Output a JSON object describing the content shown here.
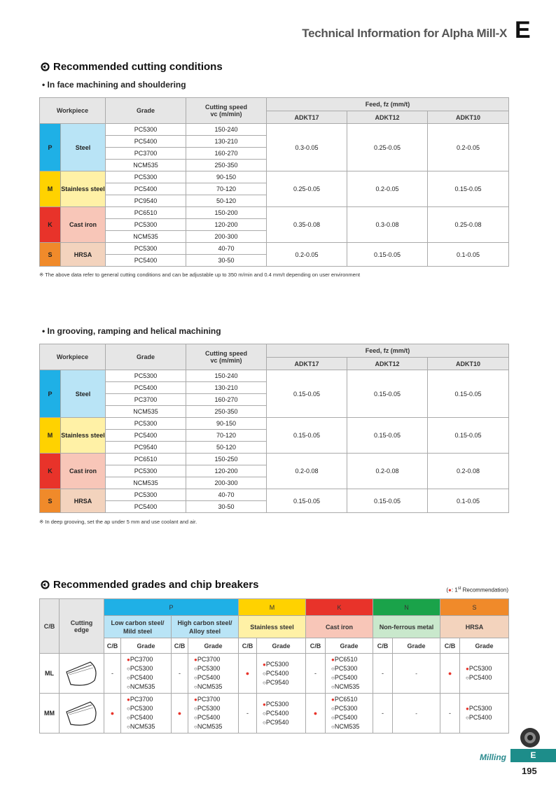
{
  "header": {
    "title": "Technical Information for Alpha Mill-X",
    "letter": "E"
  },
  "section1": {
    "title": "Recommended cutting conditions"
  },
  "table1": {
    "subtitle": "• In face machining and shouldering",
    "headers": {
      "workpiece": "Workpiece",
      "grade": "Grade",
      "speed": [
        "Cutting speed",
        "vc (m/min)"
      ],
      "feed": "Feed, fz (mm/t)",
      "tools": [
        "ADKT17",
        "ADKT12",
        "ADKT10"
      ]
    },
    "groups": [
      {
        "code": "P",
        "material": "Steel",
        "color": "#1fb0e6",
        "light": "#b9e4f6",
        "rows": [
          [
            "PC5300",
            "150-240"
          ],
          [
            "PC5400",
            "130-210"
          ],
          [
            "PC3700",
            "160-270"
          ],
          [
            "NCM535",
            "250-350"
          ]
        ],
        "feeds": [
          "0.3-0.05",
          "0.25-0.05",
          "0.2-0.05"
        ]
      },
      {
        "code": "M",
        "material": "Stainless steel",
        "color": "#ffd200",
        "light": "#fff1a6",
        "rows": [
          [
            "PC5300",
            "90-150"
          ],
          [
            "PC5400",
            "70-120"
          ],
          [
            "PC9540",
            "50-120"
          ]
        ],
        "feeds": [
          "0.25-0.05",
          "0.2-0.05",
          "0.15-0.05"
        ]
      },
      {
        "code": "K",
        "material": "Cast iron",
        "color": "#e8332a",
        "light": "#f8c6b8",
        "rows": [
          [
            "PC6510",
            "150-200"
          ],
          [
            "PC5300",
            "120-200"
          ],
          [
            "NCM535",
            "200-300"
          ]
        ],
        "feeds": [
          "0.35-0.08",
          "0.3-0.08",
          "0.25-0.08"
        ]
      },
      {
        "code": "S",
        "material": "HRSA",
        "color": "#f08a2a",
        "light": "#f3d3bd",
        "rows": [
          [
            "PC5300",
            "40-70"
          ],
          [
            "PC5400",
            "30-50"
          ]
        ],
        "feeds": [
          "0.2-0.05",
          "0.15-0.05",
          "0.1-0.05"
        ]
      }
    ],
    "note": "※ The above data refer to general cutting conditions and can be adjustable up to 350 m/min and 0.4 mm/t depending on user environment"
  },
  "table2": {
    "subtitle": "• In grooving, ramping and helical machining",
    "headers": {
      "workpiece": "Workpiece",
      "grade": "Grade",
      "speed": [
        "Cutting speed",
        "vc (m/min)"
      ],
      "feed": "Feed, fz (mm/t)",
      "tools": [
        "ADKT17",
        "ADKT12",
        "ADKT10"
      ]
    },
    "groups": [
      {
        "code": "P",
        "material": "Steel",
        "color": "#1fb0e6",
        "light": "#b9e4f6",
        "rows": [
          [
            "PC5300",
            "150-240"
          ],
          [
            "PC5400",
            "130-210"
          ],
          [
            "PC3700",
            "160-270"
          ],
          [
            "NCM535",
            "250-350"
          ]
        ],
        "feeds": [
          "0.15-0.05",
          "0.15-0.05",
          "0.15-0.05"
        ]
      },
      {
        "code": "M",
        "material": "Stainless steel",
        "color": "#ffd200",
        "light": "#fff1a6",
        "rows": [
          [
            "PC5300",
            "90-150"
          ],
          [
            "PC5400",
            "70-120"
          ],
          [
            "PC9540",
            "50-120"
          ]
        ],
        "feeds": [
          "0.15-0.05",
          "0.15-0.05",
          "0.15-0.05"
        ]
      },
      {
        "code": "K",
        "material": "Cast iron",
        "color": "#e8332a",
        "light": "#f8c6b8",
        "rows": [
          [
            "PC6510",
            "150-250"
          ],
          [
            "PC5300",
            "120-200"
          ],
          [
            "NCM535",
            "200-300"
          ]
        ],
        "feeds": [
          "0.2-0.08",
          "0.2-0.08",
          "0.2-0.08"
        ]
      },
      {
        "code": "S",
        "material": "HRSA",
        "color": "#f08a2a",
        "light": "#f3d3bd",
        "rows": [
          [
            "PC5300",
            "40-70"
          ],
          [
            "PC5400",
            "30-50"
          ]
        ],
        "feeds": [
          "0.15-0.05",
          "0.15-0.05",
          "0.1-0.05"
        ]
      }
    ],
    "note": "※ In deep grooving, set the ap under 5 mm and use coolant and air."
  },
  "section2": {
    "title": "Recommended grades and chip breakers",
    "legend": {
      "open": "(",
      "dot": "●",
      "text": ": 1",
      "sup": "st",
      "close": " Recommendation)"
    }
  },
  "table3": {
    "headers": {
      "cb": "C/B",
      "edge": "Cutting edge",
      "sub_cb": "C/B",
      "sub_grade": "Grade"
    },
    "groups": [
      {
        "code": "P",
        "color": "#1fb0e6",
        "light": "#b9e4f6",
        "materials": [
          "Low carbon steel/\nMild steel",
          "High carbon steel/\nAlloy steel"
        ]
      },
      {
        "code": "M",
        "color": "#ffd200",
        "light": "#fff1a6",
        "materials": [
          "Stainless steel"
        ]
      },
      {
        "code": "K",
        "color": "#e8332a",
        "light": "#f8c6b8",
        "materials": [
          "Cast iron"
        ]
      },
      {
        "code": "N",
        "color": "#1aa34a",
        "light": "#c9e8cc",
        "materials": [
          "Non-ferrous metal"
        ]
      },
      {
        "code": "S",
        "color": "#f08a2a",
        "light": "#f3d3bd",
        "materials": [
          "HRSA"
        ]
      }
    ],
    "rows": [
      {
        "name": "ML",
        "cells": [
          {
            "cb": "-",
            "grades": [
              [
                "●",
                "PC3700"
              ],
              [
                "○",
                "PC5300"
              ],
              [
                "○",
                "PC5400"
              ],
              [
                "○",
                "NCM535"
              ]
            ]
          },
          {
            "cb": "-",
            "grades": [
              [
                "●",
                "PC3700"
              ],
              [
                "○",
                "PC5300"
              ],
              [
                "○",
                "PC5400"
              ],
              [
                "○",
                "NCM535"
              ]
            ]
          },
          {
            "cb": "●",
            "grades": [
              [
                "●",
                "PC5300"
              ],
              [
                "○",
                "PC5400"
              ],
              [
                "○",
                "PC9540"
              ]
            ]
          },
          {
            "cb": "-",
            "grades": [
              [
                "●",
                "PC6510"
              ],
              [
                "○",
                "PC5300"
              ],
              [
                "○",
                "PC5400"
              ],
              [
                "○",
                "NCM535"
              ]
            ]
          },
          {
            "cb": "-",
            "grades": [
              [
                "-",
                ""
              ]
            ]
          },
          {
            "cb": "●",
            "grades": [
              [
                "●",
                "PC5300"
              ],
              [
                "○",
                "PC5400"
              ]
            ]
          }
        ]
      },
      {
        "name": "MM",
        "cells": [
          {
            "cb": "●",
            "grades": [
              [
                "●",
                "PC3700"
              ],
              [
                "○",
                "PC5300"
              ],
              [
                "○",
                "PC5400"
              ],
              [
                "○",
                "NCM535"
              ]
            ]
          },
          {
            "cb": "●",
            "grades": [
              [
                "●",
                "PC3700"
              ],
              [
                "○",
                "PC5300"
              ],
              [
                "○",
                "PC5400"
              ],
              [
                "○",
                "NCM535"
              ]
            ]
          },
          {
            "cb": "-",
            "grades": [
              [
                "●",
                "PC5300"
              ],
              [
                "○",
                "PC5400"
              ],
              [
                "○",
                "PC9540"
              ]
            ]
          },
          {
            "cb": "●",
            "grades": [
              [
                "●",
                "PC6510"
              ],
              [
                "○",
                "PC5300"
              ],
              [
                "○",
                "PC5400"
              ],
              [
                "○",
                "NCM535"
              ]
            ]
          },
          {
            "cb": "-",
            "grades": [
              [
                "-",
                ""
              ]
            ]
          },
          {
            "cb": "-",
            "grades": [
              [
                "●",
                "PC5300"
              ],
              [
                "○",
                "PC5400"
              ]
            ]
          }
        ]
      }
    ]
  },
  "footer": {
    "section": "Milling",
    "letter": "E",
    "page": "195"
  }
}
